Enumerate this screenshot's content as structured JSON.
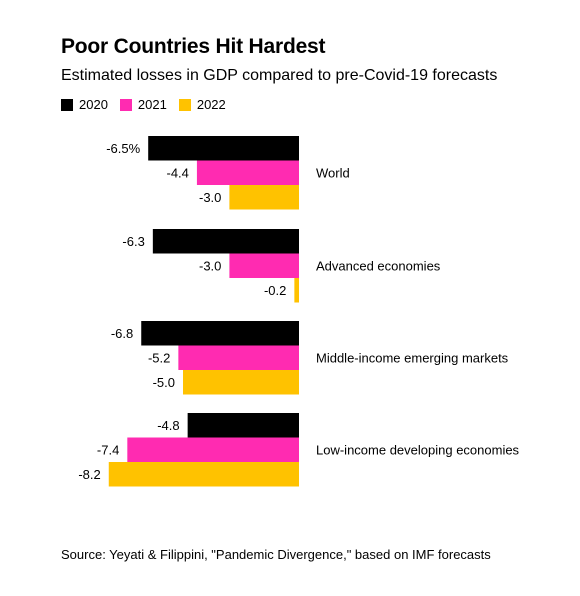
{
  "title": "Poor Countries Hit Hardest",
  "subtitle": "Estimated losses in GDP compared to pre-Covid-19 forecasts",
  "source": "Source: Yeyati & Filippini, \"Pandemic Divergence,\" based on IMF forecasts",
  "colors": {
    "2020": "#000000",
    "2021": "#ff2bb1",
    "2022": "#ffc200"
  },
  "chart_data": {
    "type": "bar",
    "orientation": "horizontal",
    "categories": [
      "World",
      "Advanced economies",
      "Middle-income emerging markets",
      "Low-income developing economies"
    ],
    "series": [
      {
        "name": "2020",
        "values": [
          -6.5,
          -6.3,
          -6.8,
          -4.8
        ],
        "labels": [
          "-6.5%",
          "-6.3",
          "-6.8",
          "-4.8"
        ]
      },
      {
        "name": "2021",
        "values": [
          -4.4,
          -3.0,
          -5.2,
          -7.4
        ],
        "labels": [
          "-4.4",
          "-3.0",
          "-5.2",
          "-7.4"
        ]
      },
      {
        "name": "2022",
        "values": [
          -3.0,
          -0.2,
          -5.0,
          -8.2
        ],
        "labels": [
          "-3.0",
          "-0.2",
          "-5.0",
          "-8.2"
        ]
      }
    ],
    "legend_position": "top-left",
    "grid": false
  }
}
